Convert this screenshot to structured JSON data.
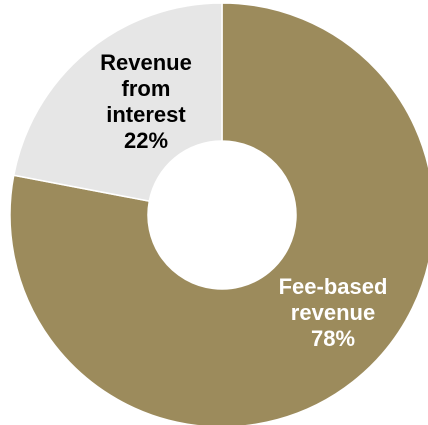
{
  "chart_data": {
    "type": "pie",
    "donut": true,
    "start_angle_deg": 0,
    "direction": "clockwise",
    "slices": [
      {
        "label_lines": [
          "Fee-based",
          "revenue"
        ],
        "value": 78,
        "value_label": "78%",
        "color": "#9C8B5C",
        "label_color": "#ffffff"
      },
      {
        "label_lines": [
          "Revenue",
          "from",
          "interest"
        ],
        "value": 22,
        "value_label": "22%",
        "color": "#E6E6E6",
        "label_color": "#000000"
      }
    ]
  }
}
